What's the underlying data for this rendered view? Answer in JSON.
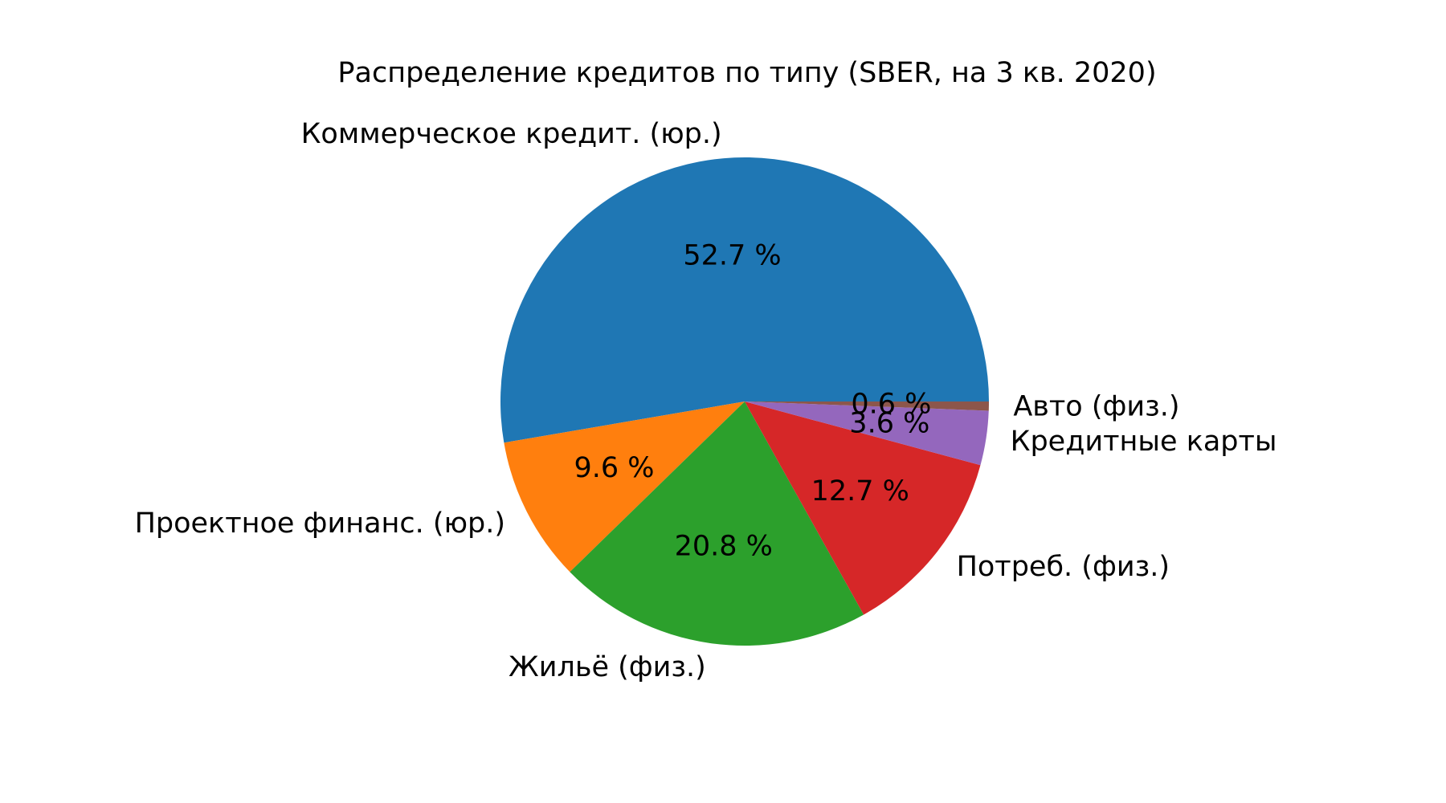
{
  "chart_data": {
    "type": "pie",
    "title": "Распределение кредитов по типу (SBER, на 3 кв. 2020)",
    "slices": [
      {
        "label": "Коммерческое кредит. (юр.)",
        "value": 52.7,
        "pct_label": "52.7 %",
        "color": "#1f77b4"
      },
      {
        "label": "Проектное финанс. (юр.)",
        "value": 9.6,
        "pct_label": "9.6 %",
        "color": "#ff7f0e"
      },
      {
        "label": "Жильё (физ.)",
        "value": 20.8,
        "pct_label": "20.8 %",
        "color": "#2ca02c"
      },
      {
        "label": "Потреб. (физ.)",
        "value": 12.7,
        "pct_label": "12.7 %",
        "color": "#d62728"
      },
      {
        "label": "Кредитные карты",
        "value": 3.6,
        "pct_label": "3.6 %",
        "color": "#9467bd"
      },
      {
        "label": "Авто (физ.)",
        "value": 0.6,
        "pct_label": "0.6 %",
        "color": "#8c564b"
      }
    ],
    "start_angle_deg": 0,
    "direction": "counterclockwise",
    "legend": "none"
  }
}
